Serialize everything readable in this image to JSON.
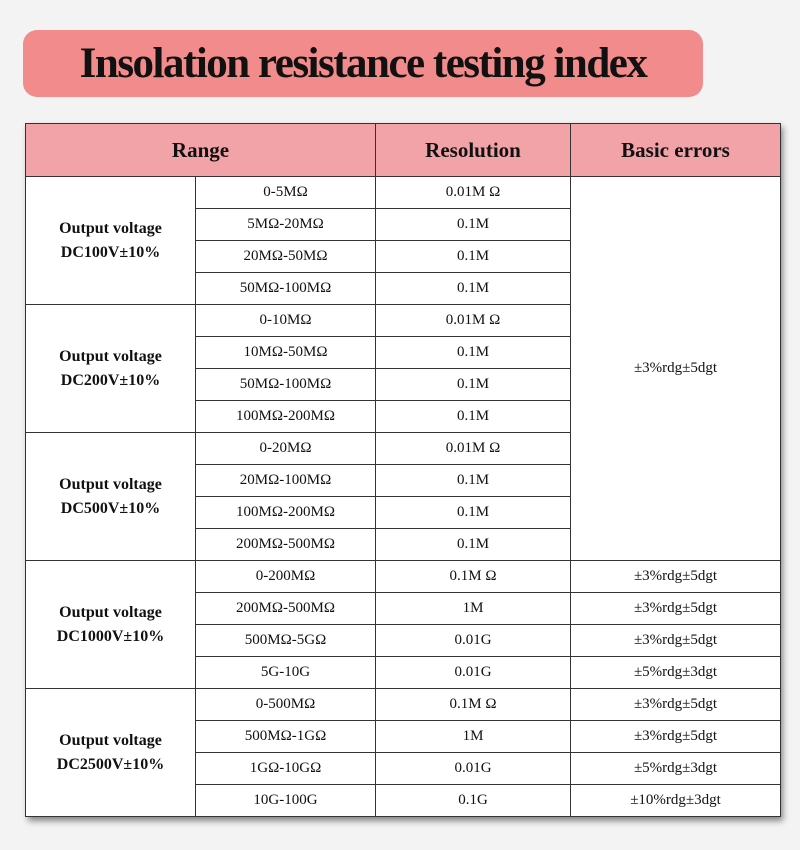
{
  "title": "Insolation resistance testing index",
  "table": {
    "headers": {
      "range": "Range",
      "resolution": "Resolution",
      "errors": "Basic errors"
    },
    "groups": [
      {
        "label_line1": "Output voltage",
        "label_line2": "DC100V±10%",
        "rows": [
          {
            "range": "0-5MΩ",
            "resolution": "0.01M Ω"
          },
          {
            "range": "5MΩ-20MΩ",
            "resolution": "0.1M"
          },
          {
            "range": "20MΩ-50MΩ",
            "resolution": "0.1M"
          },
          {
            "range": "50MΩ-100MΩ",
            "resolution": "0.1M"
          }
        ]
      },
      {
        "label_line1": "Output voltage",
        "label_line2": "DC200V±10%",
        "rows": [
          {
            "range": "0-10MΩ",
            "resolution": "0.01M Ω"
          },
          {
            "range": "10MΩ-50MΩ",
            "resolution": "0.1M"
          },
          {
            "range": "50MΩ-100MΩ",
            "resolution": "0.1M"
          },
          {
            "range": "100MΩ-200MΩ",
            "resolution": "0.1M"
          }
        ]
      },
      {
        "label_line1": "Output voltage",
        "label_line2": "DC500V±10%",
        "rows": [
          {
            "range": "0-20MΩ",
            "resolution": "0.01M Ω"
          },
          {
            "range": "20MΩ-100MΩ",
            "resolution": "0.1M"
          },
          {
            "range": "100MΩ-200MΩ",
            "resolution": "0.1M"
          },
          {
            "range": "200MΩ-500MΩ",
            "resolution": "0.1M"
          }
        ]
      },
      {
        "label_line1": "Output voltage",
        "label_line2": "DC1000V±10%",
        "rows": [
          {
            "range": "0-200MΩ",
            "resolution": "0.1M Ω",
            "error": "±3%rdg±5dgt"
          },
          {
            "range": "200MΩ-500MΩ",
            "resolution": "1M",
            "error": "±3%rdg±5dgt"
          },
          {
            "range": "500MΩ-5GΩ",
            "resolution": "0.01G",
            "error": "±3%rdg±5dgt"
          },
          {
            "range": "5G-10G",
            "resolution": "0.01G",
            "error": "±5%rdg±3dgt"
          }
        ]
      },
      {
        "label_line1": "Output voltage",
        "label_line2": "DC2500V±10%",
        "rows": [
          {
            "range": "0-500MΩ",
            "resolution": "0.1M Ω",
            "error": "±3%rdg±5dgt"
          },
          {
            "range": "500MΩ-1GΩ",
            "resolution": "1M",
            "error": "±3%rdg±5dgt"
          },
          {
            "range": "1GΩ-10GΩ",
            "resolution": "0.01G",
            "error": "±5%rdg±3dgt"
          },
          {
            "range": "10G-100G",
            "resolution": "0.1G",
            "error": "±10%rdg±3dgt"
          }
        ]
      }
    ],
    "merged_error": "±3%rdg±5dgt"
  },
  "colors": {
    "title_bg": "#f28b8b",
    "header_bg": "#f1a3a8",
    "page_bg": "#f3f3f3"
  }
}
